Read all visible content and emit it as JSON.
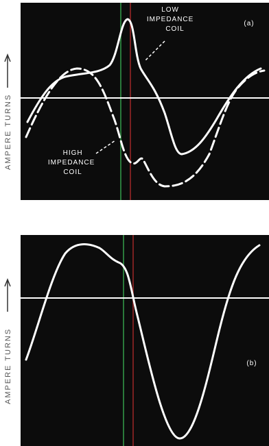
{
  "panels": [
    {
      "tag": "(a)",
      "axis_label": "AMPERE TURNS",
      "curve_labels": [
        [
          "LOW",
          "IMPEDANCE",
          "COIL"
        ],
        [
          "HIGH",
          "IMPEDANCE",
          "COIL"
        ]
      ]
    },
    {
      "tag": "(b)",
      "axis_label": "AMPERE TURNS"
    }
  ]
}
